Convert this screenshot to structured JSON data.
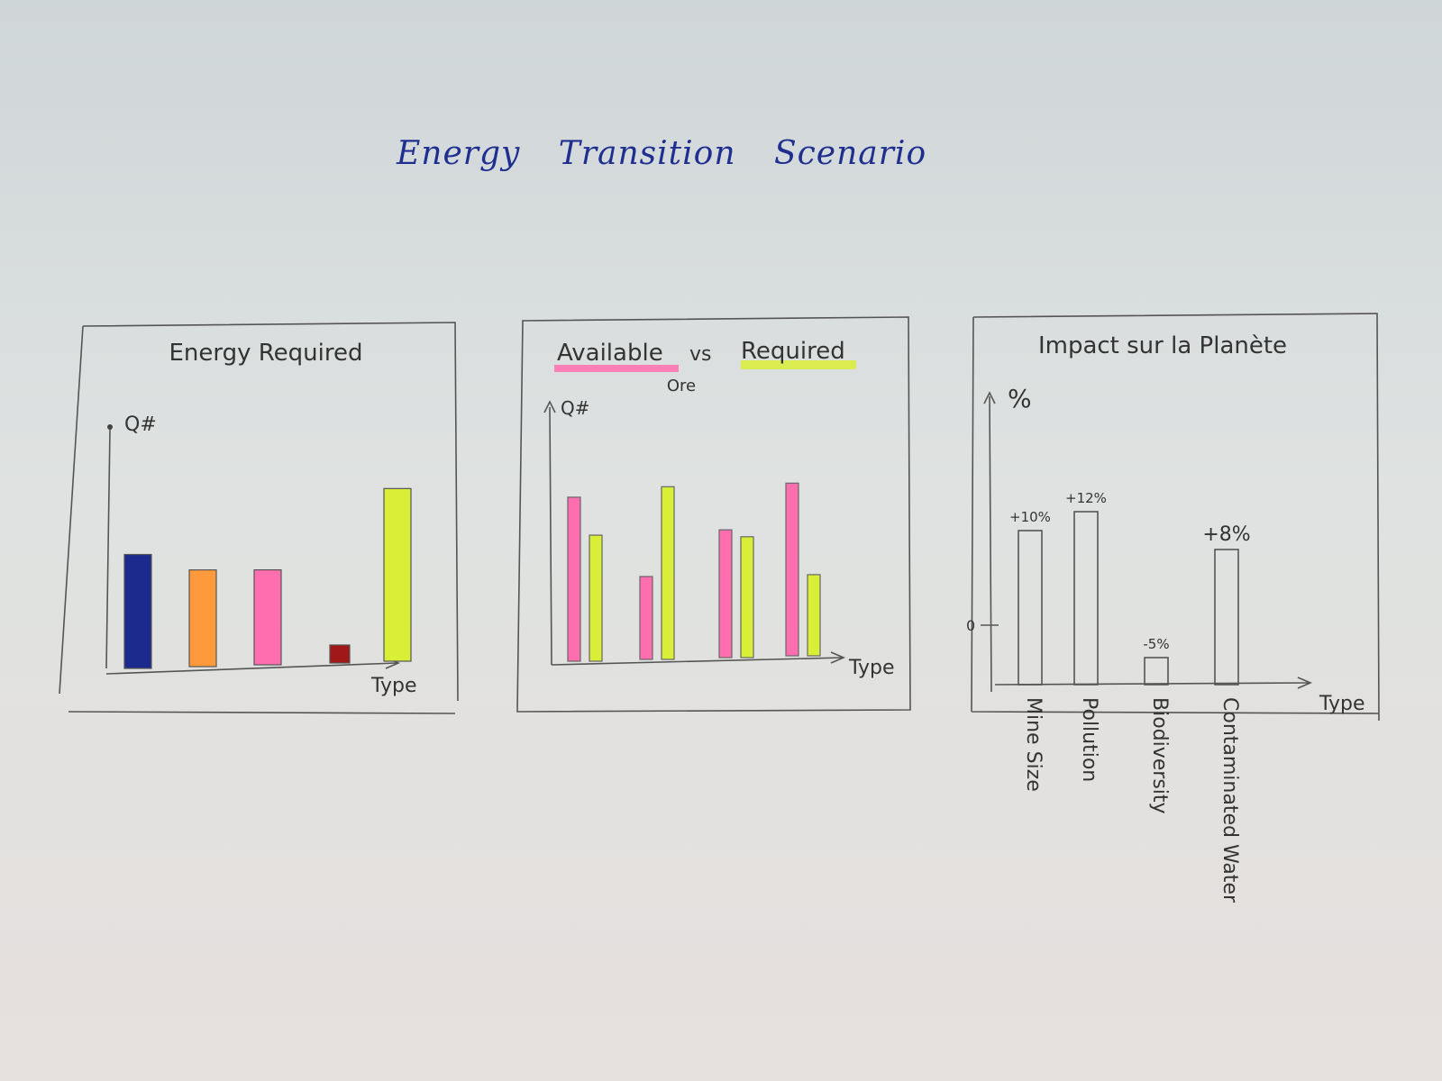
{
  "title": "Energy Transition Scenario",
  "colors": {
    "navy": "#1b2a8c",
    "orange": "#ff9a3c",
    "pink": "#ff6fb0",
    "darkred": "#a01818",
    "yellow": "#d9ee36",
    "outline": "#666666"
  },
  "chart_data": [
    {
      "type": "bar",
      "title": "Energy Required",
      "xlabel": "Type",
      "ylabel": "Q#",
      "categories": [
        "",
        "",
        "",
        "",
        ""
      ],
      "values": [
        6.6,
        5.6,
        5.5,
        1.0,
        10.0
      ],
      "colors": [
        "#1b2a8c",
        "#ff9a3c",
        "#ff6fb0",
        "#a01818",
        "#d9ee36"
      ],
      "ylim": [
        0,
        12
      ],
      "grid": false
    },
    {
      "type": "bar",
      "title": "Available vs Required",
      "subtitle": "Ore",
      "xlabel": "Type",
      "ylabel": "Q#",
      "legend": [
        {
          "label": "Available",
          "color": "#ff6fb0"
        },
        {
          "label": "Required",
          "color": "#d9ee36"
        }
      ],
      "categories": [
        "",
        "",
        "",
        ""
      ],
      "series": [
        {
          "name": "Available",
          "values": [
            9.5,
            4.8,
            7.4,
            10.0
          ]
        },
        {
          "name": "Required",
          "values": [
            7.3,
            10.0,
            7.0,
            4.7
          ]
        }
      ],
      "ylim": [
        0,
        12
      ],
      "grid": false
    },
    {
      "type": "bar",
      "title": "Impact sur la Planète",
      "xlabel": "Type",
      "ylabel": "%",
      "zero_label": "0",
      "categories": [
        "Mine Size",
        "Pollution",
        "Biodiversity",
        "Contaminated Water"
      ],
      "values": [
        10,
        12,
        -5,
        8
      ],
      "value_labels": [
        "+10%",
        "+12%",
        "-5%",
        "+8%"
      ],
      "ylim": [
        -6,
        16
      ],
      "grid": false
    }
  ]
}
